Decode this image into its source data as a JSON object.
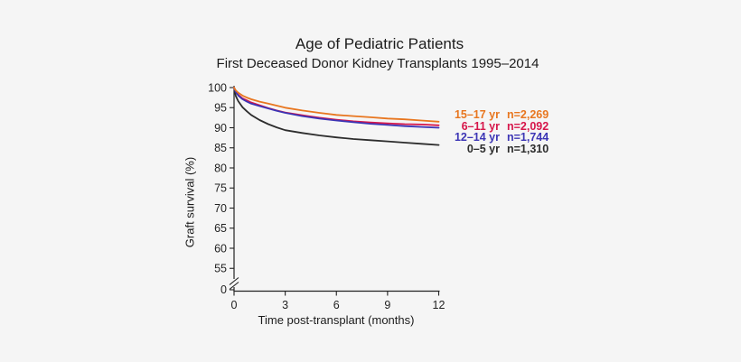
{
  "chart_data": {
    "type": "line",
    "title": "Age of Pediatric Patients",
    "subtitle": "First Deceased Donor Kidney Transplants 1995–2014",
    "xlabel": "Time post-transplant (months)",
    "ylabel": "Graft survival (%)",
    "xlim": [
      0,
      12
    ],
    "ylim_displayed": [
      55,
      100
    ],
    "x_ticks": [
      0,
      3,
      6,
      9,
      12
    ],
    "y_ticks": [
      100,
      95,
      90,
      85,
      80,
      75,
      70,
      65,
      60,
      55
    ],
    "y_axis_break": true,
    "y_break_bottom_label": "0",
    "grid": false,
    "legend_position": "right-of-plot",
    "x": [
      0,
      0.1,
      0.25,
      0.5,
      0.75,
      1,
      1.5,
      2,
      2.5,
      3,
      4,
      5,
      6,
      7,
      8,
      9,
      10,
      11,
      12
    ],
    "series": [
      {
        "name": "15–17 yr",
        "n_label": "n=2,269",
        "color": "#e8761f",
        "values": [
          100,
          99.3,
          98.7,
          98.0,
          97.5,
          97.1,
          96.5,
          96.0,
          95.5,
          95.0,
          94.3,
          93.7,
          93.2,
          92.9,
          92.6,
          92.3,
          92.1,
          91.8,
          91.5
        ]
      },
      {
        "name": "6–11 yr",
        "n_label": "n=2,092",
        "color": "#d6164a",
        "values": [
          100,
          99.0,
          98.2,
          97.3,
          96.8,
          96.3,
          95.6,
          94.9,
          94.3,
          93.8,
          93.1,
          92.5,
          92.0,
          91.6,
          91.3,
          91.1,
          90.9,
          90.8,
          90.6
        ]
      },
      {
        "name": "12–14 yr",
        "n_label": "n=1,744",
        "color": "#3c35b5",
        "values": [
          100,
          98.9,
          98.0,
          97.1,
          96.5,
          96.0,
          95.4,
          94.8,
          94.2,
          93.7,
          92.9,
          92.3,
          91.8,
          91.4,
          91.0,
          90.7,
          90.4,
          90.2,
          90.0
        ]
      },
      {
        "name": "0–5 yr",
        "n_label": "n=1,310",
        "color": "#2d2d2d",
        "values": [
          100,
          97.9,
          96.6,
          95.1,
          94.1,
          93.2,
          91.9,
          90.9,
          90.1,
          89.4,
          88.7,
          88.1,
          87.6,
          87.2,
          86.9,
          86.6,
          86.3,
          86.0,
          85.7
        ]
      }
    ]
  },
  "colors": {
    "background": "#f5f5f5",
    "axis": "#222222",
    "text": "#1c1c1c"
  }
}
